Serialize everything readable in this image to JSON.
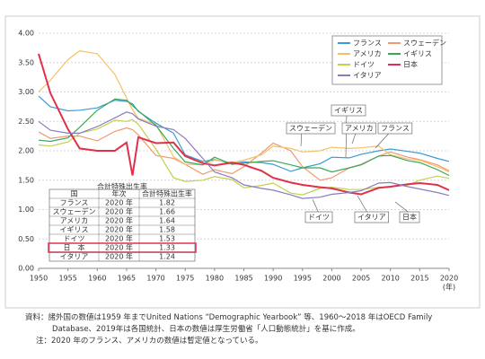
{
  "chart_data": {
    "type": "line",
    "x": [
      1950,
      1952,
      1955,
      1957,
      1960,
      1963,
      1965,
      1966,
      1967,
      1970,
      1973,
      1975,
      1978,
      1980,
      1983,
      1985,
      1988,
      1990,
      1993,
      1995,
      1998,
      2000,
      2003,
      2005,
      2008,
      2010,
      2013,
      2015,
      2018,
      2020
    ],
    "series": [
      {
        "name": "フランス",
        "color": "#3a9bd5",
        "values": [
          2.93,
          2.75,
          2.68,
          2.69,
          2.73,
          2.86,
          2.84,
          2.8,
          2.67,
          2.47,
          2.3,
          1.93,
          1.82,
          1.85,
          1.78,
          1.81,
          1.8,
          1.77,
          1.65,
          1.71,
          1.78,
          1.89,
          1.88,
          1.94,
          2.0,
          2.03,
          1.99,
          1.96,
          1.87,
          1.82
        ]
      },
      {
        "name": "スウェーデン",
        "color": "#f09a6e",
        "values": [
          2.32,
          2.21,
          2.25,
          2.25,
          2.17,
          2.33,
          2.39,
          2.36,
          2.27,
          1.92,
          1.87,
          1.77,
          1.6,
          1.68,
          1.61,
          1.73,
          1.96,
          2.13,
          2.0,
          1.73,
          1.5,
          1.54,
          1.71,
          1.77,
          1.91,
          1.98,
          1.89,
          1.85,
          1.76,
          1.66
        ]
      },
      {
        "name": "アメリカ",
        "color": "#f6c065",
        "values": [
          3.0,
          3.2,
          3.55,
          3.7,
          3.65,
          3.3,
          2.9,
          2.7,
          2.55,
          2.45,
          1.9,
          1.77,
          1.76,
          1.84,
          1.8,
          1.84,
          1.93,
          2.08,
          2.04,
          1.98,
          2.0,
          2.06,
          2.04,
          2.05,
          2.08,
          1.93,
          1.86,
          1.84,
          1.73,
          1.64
        ]
      },
      {
        "name": "イギリス",
        "color": "#3aa65a",
        "values": [
          2.18,
          2.16,
          2.22,
          2.4,
          2.69,
          2.88,
          2.86,
          2.77,
          2.68,
          2.43,
          2.04,
          1.81,
          1.76,
          1.89,
          1.77,
          1.79,
          1.82,
          1.83,
          1.76,
          1.71,
          1.71,
          1.64,
          1.71,
          1.76,
          1.91,
          1.92,
          1.83,
          1.8,
          1.68,
          1.58
        ]
      },
      {
        "name": "ドイツ",
        "color": "#c5cf4e",
        "values": [
          2.1,
          2.08,
          2.15,
          2.3,
          2.37,
          2.52,
          2.5,
          2.53,
          2.45,
          2.03,
          1.54,
          1.48,
          1.5,
          1.56,
          1.51,
          1.37,
          1.41,
          1.45,
          1.28,
          1.25,
          1.36,
          1.38,
          1.34,
          1.34,
          1.38,
          1.39,
          1.42,
          1.5,
          1.57,
          1.53
        ]
      },
      {
        "name": "日本",
        "color": "#e0304a",
        "values": [
          3.65,
          2.98,
          2.37,
          2.04,
          2.0,
          2.0,
          2.14,
          1.58,
          2.23,
          2.13,
          2.14,
          1.91,
          1.79,
          1.75,
          1.8,
          1.76,
          1.66,
          1.54,
          1.46,
          1.42,
          1.38,
          1.36,
          1.29,
          1.26,
          1.37,
          1.39,
          1.43,
          1.45,
          1.42,
          1.33
        ]
      },
      {
        "name": "イタリア",
        "color": "#8a7cbc",
        "values": [
          2.5,
          2.35,
          2.3,
          2.3,
          2.41,
          2.56,
          2.66,
          2.63,
          2.54,
          2.42,
          2.36,
          2.21,
          1.87,
          1.64,
          1.54,
          1.42,
          1.36,
          1.33,
          1.25,
          1.19,
          1.21,
          1.26,
          1.29,
          1.32,
          1.45,
          1.46,
          1.39,
          1.35,
          1.29,
          1.24
        ]
      }
    ],
    "xlim": [
      1950,
      2020
    ],
    "xticks": [
      1950,
      1955,
      1960,
      1965,
      1970,
      1975,
      1980,
      1985,
      1990,
      1995,
      2000,
      2005,
      2010,
      2015,
      2020
    ],
    "x_label": "(年)",
    "ylim": [
      0,
      4
    ],
    "yticks": [
      {
        "value": 0,
        "label": "0.00"
      },
      {
        "value": 0.5,
        "label": "0.50"
      },
      {
        "value": 1,
        "label": "1.00"
      },
      {
        "value": 1.5,
        "label": "1.50"
      },
      {
        "value": 2,
        "label": "2.00"
      },
      {
        "value": 2.5,
        "label": "2.50"
      },
      {
        "value": 3,
        "label": "3.00"
      },
      {
        "value": 3.5,
        "label": "3.50"
      },
      {
        "value": 4,
        "label": "4.00"
      }
    ],
    "grid": true,
    "legend": "upper right",
    "annotations": [
      "イギリス",
      "スウェーデン",
      "アメリカ",
      "フランス",
      "ドイツ",
      "イタリア",
      "日本"
    ],
    "inset_table": {
      "title": "合計特殊出生率",
      "columns": [
        "国",
        "年次",
        "合計特殊出生率"
      ],
      "rows": [
        [
          "フランス",
          "2020 年",
          "1.82"
        ],
        [
          "スウェーデン",
          "2020 年",
          "1.66"
        ],
        [
          "アメリカ",
          "2020 年",
          "1.64"
        ],
        [
          "イギリス",
          "2020 年",
          "1.58"
        ],
        [
          "ドイツ",
          "2020 年",
          "1.53"
        ],
        [
          "日　本",
          "2020 年",
          "1.33"
        ],
        [
          "イタリア",
          "2020 年",
          "1.24"
        ]
      ]
    },
    "source": "資料：諸外国の数値は1959 年までUnited Nations “Demographic Yearbook” 等、1960～2018 年はOECD Family Database、2019年は各国統計、日本の数値は厚生労働省「人口動態統計」を基に作成。",
    "note": "注：2020 年のフランス、アメリカの数値は暫定値となっている。"
  }
}
